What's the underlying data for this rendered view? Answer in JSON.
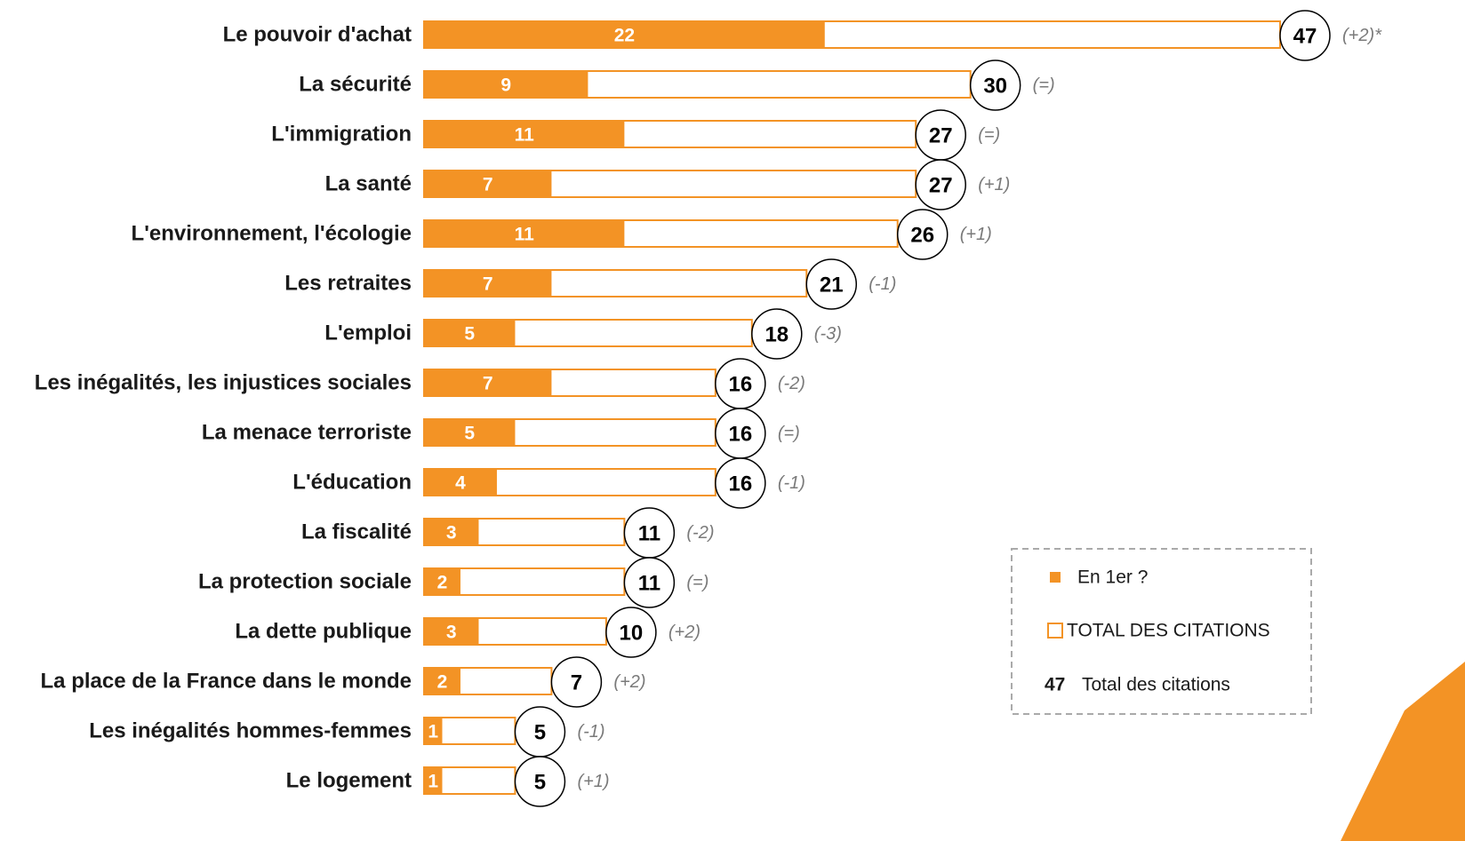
{
  "chart_data": {
    "type": "bar",
    "orientation": "horizontal",
    "categories": [
      "Le pouvoir d'achat",
      "La sécurité",
      "L'immigration",
      "La santé",
      "L'environnement, l'écologie",
      "Les retraites",
      "L'emploi",
      "Les inégalités, les injustices sociales",
      "La menace terroriste",
      "L'éducation",
      "La fiscalité",
      "La protection sociale",
      "La dette publique",
      "La place de la France dans le monde",
      "Les inégalités hommes-femmes",
      "Le logement"
    ],
    "series": [
      {
        "name": "En 1er ?",
        "color": "#f39325",
        "values": [
          22,
          9,
          11,
          7,
          11,
          7,
          5,
          7,
          5,
          4,
          3,
          2,
          3,
          2,
          1,
          1
        ]
      },
      {
        "name": "TOTAL DES CITATIONS",
        "color": "#f39325",
        "values": [
          47,
          30,
          27,
          27,
          26,
          21,
          18,
          16,
          16,
          16,
          11,
          11,
          10,
          7,
          5,
          5
        ]
      }
    ],
    "annotations": [
      "(+2)*",
      "(=)",
      "(=)",
      "(+1)",
      "(+1)",
      "(-1)",
      "(-3)",
      "(-2)",
      "(=)",
      "(-1)",
      "(-2)",
      "(=)",
      "(+2)",
      "(+2)",
      "(-1)",
      "(+1)"
    ],
    "legend_example": {
      "value": 47,
      "label": "Total des citations"
    },
    "xlim": [
      0,
      47
    ]
  }
}
